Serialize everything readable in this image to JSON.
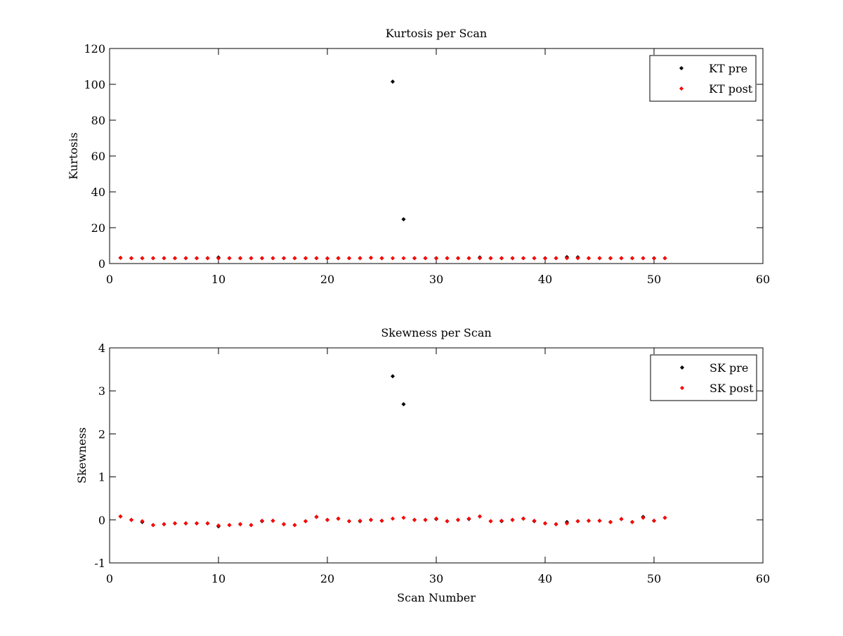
{
  "chart_data": [
    {
      "type": "scatter",
      "title": "Kurtosis per Scan",
      "xlabel": "",
      "ylabel": "Kurtosis",
      "xlim": [
        0,
        60
      ],
      "ylim": [
        0,
        120
      ],
      "xticks": [
        0,
        10,
        20,
        30,
        40,
        50,
        60
      ],
      "yticks": [
        0,
        20,
        40,
        60,
        80,
        100,
        120
      ],
      "grid": false,
      "legend_position": "top-right",
      "series": [
        {
          "name": "KT pre",
          "color": "#000000",
          "x": [
            1,
            2,
            3,
            4,
            5,
            6,
            7,
            8,
            9,
            10,
            11,
            12,
            13,
            14,
            15,
            16,
            17,
            18,
            19,
            20,
            21,
            22,
            23,
            24,
            25,
            26,
            27,
            28,
            29,
            30,
            31,
            32,
            33,
            34,
            35,
            36,
            37,
            38,
            39,
            40,
            41,
            42,
            43,
            44,
            45,
            46,
            47,
            48,
            49,
            50,
            51
          ],
          "y": [
            3.2,
            3.0,
            3.0,
            3.0,
            3.0,
            3.0,
            3.0,
            3.0,
            3.0,
            3.4,
            3.0,
            3.0,
            3.0,
            3.0,
            3.0,
            3.0,
            3.0,
            3.0,
            3.0,
            2.9,
            3.0,
            3.0,
            3.0,
            3.2,
            3.0,
            101.5,
            24.7,
            3.0,
            3.0,
            3.0,
            3.0,
            3.0,
            3.0,
            3.4,
            3.0,
            3.0,
            3.0,
            3.0,
            3.0,
            3.0,
            3.0,
            3.6,
            3.5,
            3.0,
            3.0,
            3.0,
            3.0,
            3.0,
            3.0,
            3.0,
            3.0
          ]
        },
        {
          "name": "KT post",
          "color": "#ff0000",
          "x": [
            1,
            2,
            3,
            4,
            5,
            6,
            7,
            8,
            9,
            10,
            11,
            12,
            13,
            14,
            15,
            16,
            17,
            18,
            19,
            20,
            21,
            22,
            23,
            24,
            25,
            26,
            27,
            28,
            29,
            30,
            31,
            32,
            33,
            34,
            35,
            36,
            37,
            38,
            39,
            40,
            41,
            42,
            43,
            44,
            45,
            46,
            47,
            48,
            49,
            50,
            51
          ],
          "y": [
            3.2,
            3.0,
            3.0,
            3.0,
            3.0,
            3.0,
            3.0,
            3.0,
            3.0,
            2.9,
            3.0,
            3.0,
            3.0,
            3.0,
            3.0,
            3.0,
            3.0,
            3.0,
            3.0,
            2.9,
            3.0,
            3.0,
            3.0,
            3.2,
            3.0,
            3.0,
            3.0,
            3.0,
            3.0,
            2.9,
            3.0,
            3.0,
            3.0,
            3.0,
            3.0,
            3.0,
            3.0,
            3.0,
            3.0,
            2.9,
            3.0,
            3.0,
            3.0,
            3.0,
            3.0,
            3.0,
            3.0,
            3.0,
            3.0,
            2.9,
            3.0
          ]
        }
      ]
    },
    {
      "type": "scatter",
      "title": "Skewness per Scan",
      "xlabel": "Scan Number",
      "ylabel": "Skewness",
      "xlim": [
        0,
        60
      ],
      "ylim": [
        -1,
        4
      ],
      "xticks": [
        0,
        10,
        20,
        30,
        40,
        50,
        60
      ],
      "yticks": [
        -1,
        0,
        1,
        2,
        3,
        4
      ],
      "grid": false,
      "legend_position": "top-right",
      "series": [
        {
          "name": "SK pre",
          "color": "#000000",
          "x": [
            1,
            2,
            3,
            4,
            5,
            6,
            7,
            8,
            9,
            10,
            11,
            12,
            13,
            14,
            15,
            16,
            17,
            18,
            19,
            20,
            21,
            22,
            23,
            24,
            25,
            26,
            27,
            28,
            29,
            30,
            31,
            32,
            33,
            34,
            35,
            36,
            37,
            38,
            39,
            40,
            41,
            42,
            43,
            44,
            45,
            46,
            47,
            48,
            49,
            50,
            51
          ],
          "y": [
            0.08,
            0.0,
            -0.05,
            -0.12,
            -0.1,
            -0.08,
            -0.08,
            -0.08,
            -0.08,
            -0.15,
            -0.12,
            -0.1,
            -0.12,
            -0.03,
            -0.02,
            -0.1,
            -0.12,
            -0.03,
            0.07,
            0.0,
            0.03,
            -0.03,
            -0.03,
            0.0,
            -0.02,
            3.34,
            2.69,
            0.0,
            0.0,
            0.02,
            -0.03,
            0.0,
            0.02,
            0.08,
            -0.03,
            -0.03,
            0.0,
            0.03,
            -0.03,
            -0.08,
            -0.1,
            -0.05,
            -0.03,
            -0.02,
            -0.02,
            -0.05,
            0.02,
            -0.05,
            0.07,
            -0.02,
            0.05
          ]
        },
        {
          "name": "SK post",
          "color": "#ff0000",
          "x": [
            1,
            2,
            3,
            4,
            5,
            6,
            7,
            8,
            9,
            10,
            11,
            12,
            13,
            14,
            15,
            16,
            17,
            18,
            19,
            20,
            21,
            22,
            23,
            24,
            25,
            26,
            27,
            28,
            29,
            30,
            31,
            32,
            33,
            34,
            35,
            36,
            37,
            38,
            39,
            40,
            41,
            42,
            43,
            44,
            45,
            46,
            47,
            48,
            49,
            50,
            51
          ],
          "y": [
            0.08,
            0.0,
            -0.03,
            -0.12,
            -0.1,
            -0.08,
            -0.08,
            -0.08,
            -0.08,
            -0.13,
            -0.12,
            -0.1,
            -0.12,
            -0.02,
            -0.02,
            -0.1,
            -0.12,
            -0.03,
            0.07,
            0.0,
            0.03,
            -0.03,
            -0.02,
            0.0,
            -0.02,
            0.03,
            0.05,
            0.0,
            0.0,
            0.03,
            -0.03,
            0.0,
            0.03,
            0.08,
            -0.03,
            -0.02,
            0.0,
            0.03,
            -0.02,
            -0.08,
            -0.1,
            -0.08,
            -0.03,
            -0.02,
            -0.02,
            -0.05,
            0.02,
            -0.05,
            0.05,
            -0.02,
            0.05
          ]
        }
      ]
    }
  ]
}
